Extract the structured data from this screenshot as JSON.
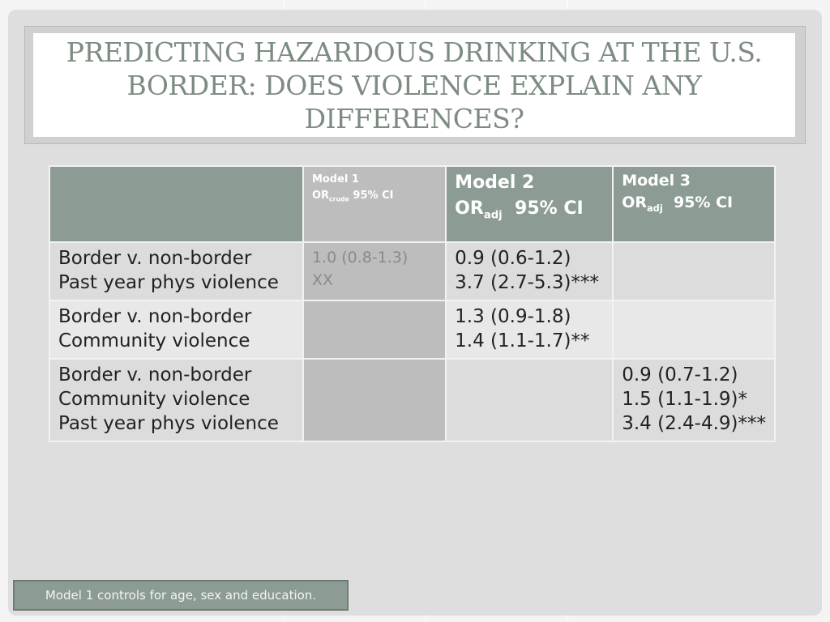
{
  "title": "Predicting Hazardous Drinking at the U.S. Border: Does Violence Explain Any Differences?",
  "table": {
    "headers": [
      {
        "line1": ""
      },
      {
        "line1": "Model 1",
        "or": "OR",
        "sub": "crude",
        "ci": "95% CI"
      },
      {
        "line1": "Model 2",
        "or": "OR",
        "sub": "adj",
        "ci": "95% CI"
      },
      {
        "line1": "Model 3",
        "or": "OR",
        "sub": "adj",
        "ci": "95% CI"
      }
    ],
    "rows": [
      {
        "label": [
          "Border v. non-border",
          "Past year phys violence"
        ],
        "model1": [
          "1.0  (0.8-1.3)",
          "XX"
        ],
        "model2": [
          "0.9  (0.6-1.2)",
          "3.7  (2.7-5.3)***"
        ],
        "model3": []
      },
      {
        "label": [
          "Border v. non-border",
          "Community violence"
        ],
        "model1": [],
        "model2": [
          "1.3 (0.9-1.8)",
          "1.4 (1.1-1.7)**"
        ],
        "model3": []
      },
      {
        "label": [
          "Border v. non-border",
          "Community violence",
          "Past year phys violence"
        ],
        "model1": [],
        "model2": [],
        "model3": [
          "0.9 (0.7-1.2)",
          "1.5 (1.1-1.9)*",
          "3.4 (2.4-4.9)***"
        ]
      }
    ]
  },
  "note": "Model 1 controls for age, sex and education.",
  "colors": {
    "header": "#8c9c94",
    "model1_column": "#bdbdbd",
    "title": "#7d8c82"
  }
}
